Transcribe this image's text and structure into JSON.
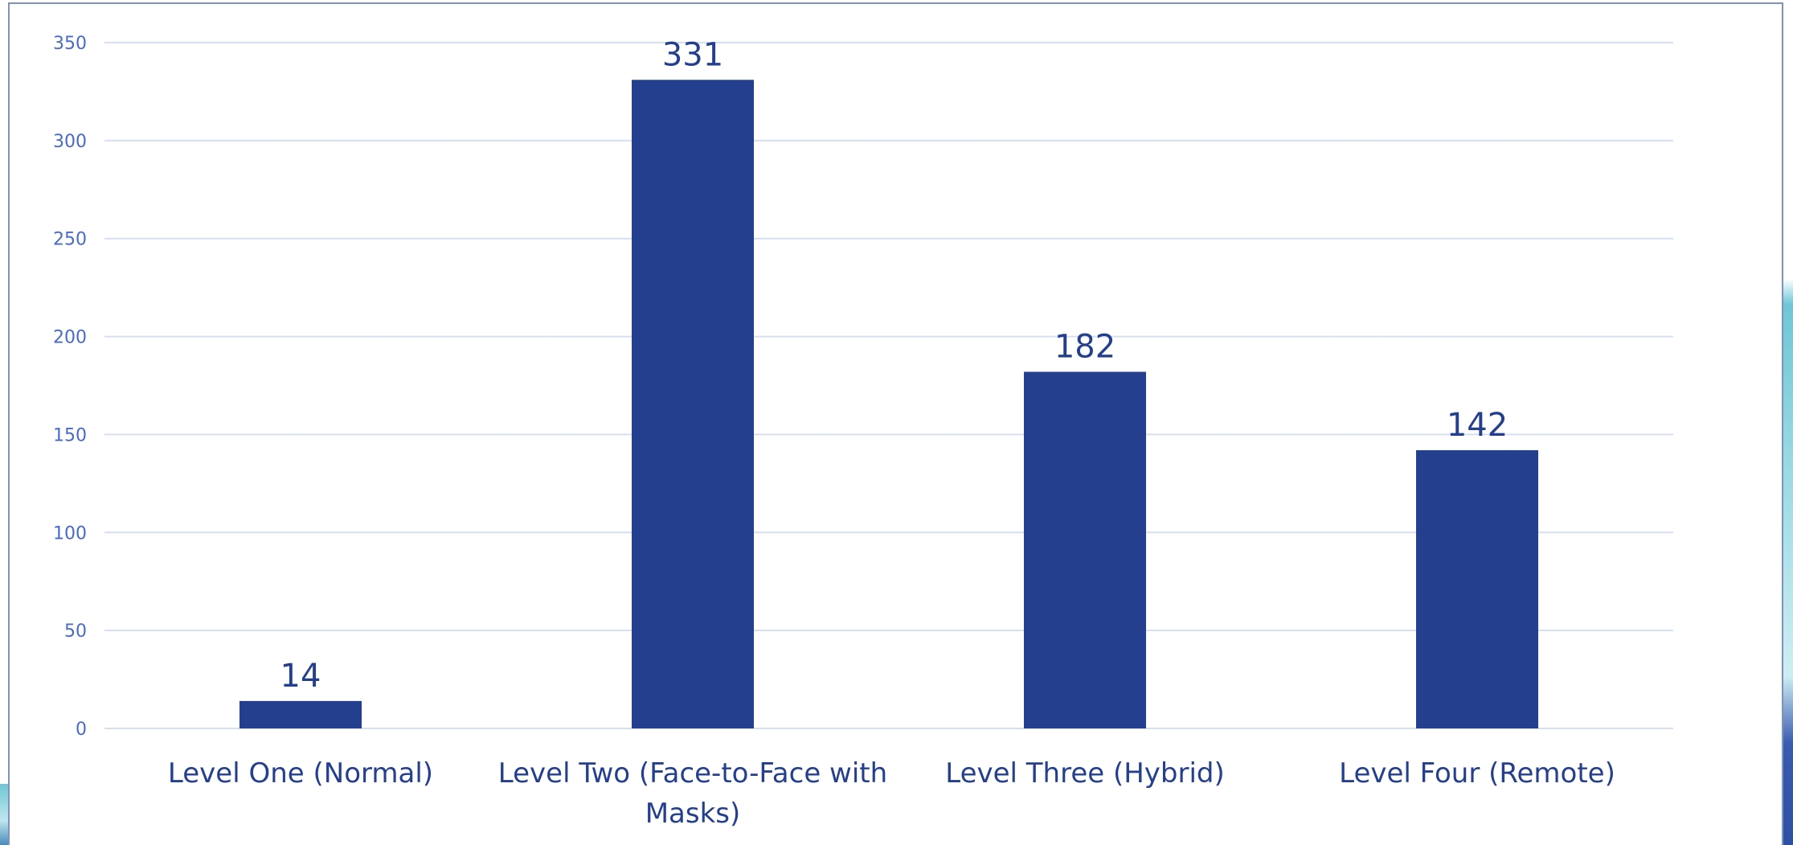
{
  "chart_data": {
    "type": "bar",
    "categories": [
      [
        "Level One (Normal)"
      ],
      [
        "Level Two (Face-to-Face with",
        "Masks)"
      ],
      [
        "Level Three (Hybrid)"
      ],
      [
        "Level Four (Remote)"
      ]
    ],
    "values": [
      14,
      331,
      182,
      142
    ],
    "data_labels": [
      "14",
      "331",
      "182",
      "142"
    ],
    "title": "",
    "xlabel": "",
    "ylabel": "",
    "ylim": [
      0,
      350
    ],
    "yticks": [
      "0",
      "50",
      "100",
      "150",
      "200",
      "250",
      "300",
      "350"
    ],
    "ytick_values": [
      0,
      50,
      100,
      150,
      200,
      250,
      300,
      350
    ],
    "grid": true,
    "legend": "none",
    "colors": {
      "bar": "#243f8d",
      "grid": "#d6dff0",
      "tick_text": "#4a6bc4",
      "label_text": "#243f8d"
    }
  }
}
